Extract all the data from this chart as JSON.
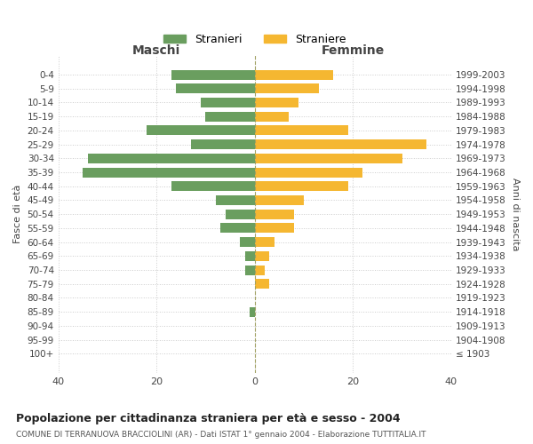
{
  "age_groups": [
    "100+",
    "95-99",
    "90-94",
    "85-89",
    "80-84",
    "75-79",
    "70-74",
    "65-69",
    "60-64",
    "55-59",
    "50-54",
    "45-49",
    "40-44",
    "35-39",
    "30-34",
    "25-29",
    "20-24",
    "15-19",
    "10-14",
    "5-9",
    "0-4"
  ],
  "birth_years": [
    "≤ 1903",
    "1904-1908",
    "1909-1913",
    "1914-1918",
    "1919-1923",
    "1924-1928",
    "1929-1933",
    "1934-1938",
    "1939-1943",
    "1944-1948",
    "1949-1953",
    "1954-1958",
    "1959-1963",
    "1964-1968",
    "1969-1973",
    "1974-1978",
    "1979-1983",
    "1984-1988",
    "1989-1993",
    "1994-1998",
    "1999-2003"
  ],
  "maschi": [
    0,
    0,
    0,
    1,
    0,
    0,
    2,
    2,
    3,
    7,
    6,
    8,
    17,
    35,
    34,
    13,
    22,
    10,
    11,
    16,
    17
  ],
  "femmine": [
    0,
    0,
    0,
    0,
    0,
    3,
    2,
    3,
    4,
    8,
    8,
    10,
    19,
    22,
    30,
    35,
    19,
    7,
    9,
    13,
    16
  ],
  "maschi_color": "#6a9e5f",
  "femmine_color": "#f5b731",
  "xlim": 40,
  "title": "Popolazione per cittadinanza straniera per età e sesso - 2004",
  "subtitle": "COMUNE DI TERRANUOVA BRACCIOLINI (AR) - Dati ISTAT 1° gennaio 2004 - Elaborazione TUTTITALIA.IT",
  "maschi_label": "Stranieri",
  "femmine_label": "Straniere",
  "xlabel_left": "Maschi",
  "xlabel_right": "Femmine",
  "ylabel_left": "Fasce di età",
  "ylabel_right": "Anni di nascita",
  "bg_color": "#ffffff",
  "grid_color": "#cccccc"
}
